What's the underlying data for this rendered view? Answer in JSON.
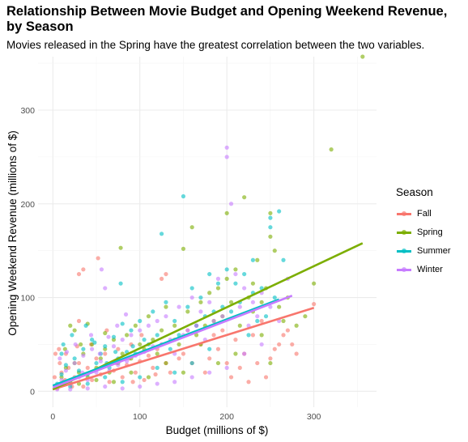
{
  "chart_data": {
    "type": "scatter",
    "title": "Relationship Between Movie Budget and Opening Weekend Revenue, by Season",
    "subtitle": "Movies released in the Spring have the greatest correlation between the two variables.",
    "xlabel": "Budget (millions of $)",
    "ylabel": "Opening Weekend Revenue (millions of $)",
    "xlim": [
      -17,
      372
    ],
    "ylim": [
      -17,
      357
    ],
    "x_ticks": [
      0,
      100,
      200,
      300
    ],
    "y_ticks": [
      0,
      100,
      200,
      300
    ],
    "grid": true,
    "legend": {
      "title": "Season",
      "position": "right"
    },
    "series": [
      {
        "name": "Fall",
        "color": "#F8766D",
        "trend": {
          "x": [
            0,
            300
          ],
          "y": [
            2,
            89
          ]
        },
        "points": [
          [
            5,
            3
          ],
          [
            10,
            20
          ],
          [
            15,
            40
          ],
          [
            20,
            8
          ],
          [
            25,
            15
          ],
          [
            30,
            30
          ],
          [
            35,
            5
          ],
          [
            40,
            25
          ],
          [
            45,
            12
          ],
          [
            50,
            35
          ],
          [
            55,
            18
          ],
          [
            60,
            40
          ],
          [
            65,
            10
          ],
          [
            70,
            22
          ],
          [
            75,
            45
          ],
          [
            80,
            15
          ],
          [
            85,
            28
          ],
          [
            90,
            50
          ],
          [
            95,
            20
          ],
          [
            100,
            32
          ],
          [
            105,
            12
          ],
          [
            110,
            38
          ],
          [
            115,
            25
          ],
          [
            120,
            45
          ],
          [
            125,
            120
          ],
          [
            130,
            30
          ],
          [
            140,
            55
          ],
          [
            150,
            40
          ],
          [
            160,
            30
          ],
          [
            165,
            70
          ],
          [
            170,
            50
          ],
          [
            180,
            35
          ],
          [
            185,
            60
          ],
          [
            190,
            45
          ],
          [
            200,
            30
          ],
          [
            210,
            55
          ],
          [
            220,
            40
          ],
          [
            230,
            60
          ],
          [
            240,
            75
          ],
          [
            250,
            35
          ],
          [
            260,
            50
          ],
          [
            270,
            65
          ],
          [
            280,
            40
          ],
          [
            300,
            93
          ],
          [
            35,
            130
          ],
          [
            30,
            125
          ],
          [
            52,
            142
          ],
          [
            130,
            125
          ],
          [
            30,
            75
          ],
          [
            3,
            40
          ],
          [
            7,
            45
          ],
          [
            12,
            10
          ],
          [
            18,
            25
          ],
          [
            22,
            5
          ],
          [
            28,
            48
          ],
          [
            2,
            15
          ],
          [
            8,
            30
          ],
          [
            14,
            12
          ],
          [
            44,
            50
          ],
          [
            62,
            65
          ],
          [
            73,
            30
          ],
          [
            88,
            35
          ],
          [
            92,
            10
          ],
          [
            102,
            60
          ],
          [
            118,
            18
          ],
          [
            125,
            50
          ],
          [
            135,
            20
          ],
          [
            145,
            35
          ],
          [
            155,
            65
          ],
          [
            175,
            20
          ],
          [
            195,
            65
          ],
          [
            205,
            15
          ],
          [
            215,
            25
          ],
          [
            225,
            10
          ],
          [
            235,
            30
          ],
          [
            245,
            15
          ],
          [
            255,
            45
          ],
          [
            265,
            60
          ],
          [
            275,
            50
          ]
        ]
      },
      {
        "name": "Spring",
        "color": "#7CAE00",
        "trend": {
          "x": [
            0,
            356
          ],
          "y": [
            2,
            158
          ]
        },
        "points": [
          [
            5,
            5
          ],
          [
            10,
            15
          ],
          [
            15,
            25
          ],
          [
            20,
            10
          ],
          [
            25,
            30
          ],
          [
            30,
            20
          ],
          [
            35,
            40
          ],
          [
            40,
            15
          ],
          [
            45,
            50
          ],
          [
            50,
            25
          ],
          [
            55,
            35
          ],
          [
            60,
            45
          ],
          [
            65,
            20
          ],
          [
            70,
            55
          ],
          [
            75,
            30
          ],
          [
            78,
            153
          ],
          [
            80,
            40
          ],
          [
            85,
            60
          ],
          [
            90,
            35
          ],
          [
            95,
            70
          ],
          [
            100,
            50
          ],
          [
            105,
            45
          ],
          [
            110,
            80
          ],
          [
            115,
            55
          ],
          [
            120,
            40
          ],
          [
            125,
            65
          ],
          [
            130,
            90
          ],
          [
            140,
            70
          ],
          [
            145,
            50
          ],
          [
            150,
            152
          ],
          [
            155,
            85
          ],
          [
            160,
            175
          ],
          [
            165,
            60
          ],
          [
            170,
            95
          ],
          [
            175,
            70
          ],
          [
            180,
            105
          ],
          [
            185,
            75
          ],
          [
            190,
            110
          ],
          [
            195,
            80
          ],
          [
            200,
            120
          ],
          [
            200,
            190
          ],
          [
            205,
            95
          ],
          [
            210,
            130
          ],
          [
            215,
            70
          ],
          [
            220,
            207
          ],
          [
            225,
            100
          ],
          [
            230,
            85
          ],
          [
            235,
            140
          ],
          [
            240,
            60
          ],
          [
            245,
            110
          ],
          [
            250,
            190
          ],
          [
            250,
            165
          ],
          [
            255,
            150
          ],
          [
            260,
            90
          ],
          [
            265,
            75
          ],
          [
            270,
            100
          ],
          [
            280,
            70
          ],
          [
            290,
            80
          ],
          [
            300,
            115
          ],
          [
            320,
            258
          ],
          [
            356,
            357
          ],
          [
            250,
            30
          ],
          [
            240,
            95
          ],
          [
            230,
            115
          ],
          [
            210,
            40
          ],
          [
            190,
            30
          ],
          [
            170,
            50
          ],
          [
            150,
            20
          ],
          [
            130,
            30
          ],
          [
            110,
            15
          ],
          [
            90,
            20
          ],
          [
            70,
            10
          ],
          [
            50,
            12
          ],
          [
            30,
            8
          ],
          [
            20,
            70
          ],
          [
            25,
            65
          ],
          [
            40,
            72
          ],
          [
            60,
            62
          ],
          [
            32,
            50
          ],
          [
            14,
            45
          ]
        ]
      },
      {
        "name": "Summer",
        "color": "#00BFC4",
        "trend": {
          "x": [
            0,
            260
          ],
          "y": [
            6,
            98
          ]
        },
        "points": [
          [
            5,
            8
          ],
          [
            10,
            18
          ],
          [
            15,
            28
          ],
          [
            20,
            12
          ],
          [
            25,
            35
          ],
          [
            30,
            22
          ],
          [
            35,
            45
          ],
          [
            40,
            18
          ],
          [
            45,
            55
          ],
          [
            50,
            30
          ],
          [
            55,
            40
          ],
          [
            60,
            48
          ],
          [
            65,
            25
          ],
          [
            70,
            58
          ],
          [
            75,
            35
          ],
          [
            78,
            115
          ],
          [
            80,
            72
          ],
          [
            85,
            42
          ],
          [
            90,
            65
          ],
          [
            95,
            40
          ],
          [
            100,
            75
          ],
          [
            105,
            55
          ],
          [
            110,
            50
          ],
          [
            115,
            85
          ],
          [
            120,
            60
          ],
          [
            125,
            168
          ],
          [
            130,
            95
          ],
          [
            135,
            45
          ],
          [
            140,
            75
          ],
          [
            145,
            60
          ],
          [
            150,
            208
          ],
          [
            155,
            90
          ],
          [
            160,
            110
          ],
          [
            165,
            70
          ],
          [
            170,
            100
          ],
          [
            175,
            80
          ],
          [
            180,
            125
          ],
          [
            185,
            85
          ],
          [
            190,
            115
          ],
          [
            195,
            90
          ],
          [
            200,
            130
          ],
          [
            205,
            85
          ],
          [
            210,
            115
          ],
          [
            215,
            95
          ],
          [
            220,
            125
          ],
          [
            225,
            60
          ],
          [
            230,
            105
          ],
          [
            235,
            75
          ],
          [
            240,
            110
          ],
          [
            245,
            80
          ],
          [
            250,
            185
          ],
          [
            250,
            175
          ],
          [
            255,
            100
          ],
          [
            260,
            192
          ],
          [
            265,
            140
          ],
          [
            230,
            140
          ],
          [
            180,
            45
          ],
          [
            160,
            30
          ],
          [
            140,
            20
          ],
          [
            120,
            25
          ],
          [
            100,
            15
          ],
          [
            80,
            10
          ],
          [
            60,
            15
          ],
          [
            40,
            8
          ],
          [
            20,
            5
          ],
          [
            10,
            40
          ],
          [
            12,
            50
          ],
          [
            22,
            60
          ],
          [
            38,
            70
          ],
          [
            48,
            52
          ],
          [
            62,
            30
          ],
          [
            72,
            42
          ],
          [
            92,
            48
          ]
        ]
      },
      {
        "name": "Winter",
        "color": "#C77CFF",
        "trend": {
          "x": [
            0,
            275
          ],
          "y": [
            4,
            102
          ]
        },
        "points": [
          [
            5,
            2
          ],
          [
            10,
            12
          ],
          [
            15,
            22
          ],
          [
            20,
            8
          ],
          [
            25,
            30
          ],
          [
            30,
            15
          ],
          [
            35,
            38
          ],
          [
            40,
            12
          ],
          [
            45,
            45
          ],
          [
            50,
            20
          ],
          [
            55,
            32
          ],
          [
            56,
            130
          ],
          [
            60,
            110
          ],
          [
            65,
            22
          ],
          [
            70,
            48
          ],
          [
            75,
            28
          ],
          [
            80,
            55
          ],
          [
            85,
            32
          ],
          [
            90,
            60
          ],
          [
            95,
            38
          ],
          [
            100,
            65
          ],
          [
            105,
            42
          ],
          [
            110,
            70
          ],
          [
            115,
            48
          ],
          [
            120,
            75
          ],
          [
            125,
            50
          ],
          [
            130,
            80
          ],
          [
            135,
            55
          ],
          [
            140,
            40
          ],
          [
            145,
            90
          ],
          [
            150,
            60
          ],
          [
            155,
            65
          ],
          [
            160,
            100
          ],
          [
            165,
            70
          ],
          [
            170,
            85
          ],
          [
            175,
            55
          ],
          [
            180,
            95
          ],
          [
            185,
            75
          ],
          [
            190,
            120
          ],
          [
            195,
            80
          ],
          [
            200,
            260
          ],
          [
            200,
            250
          ],
          [
            205,
            200
          ],
          [
            210,
            125
          ],
          [
            215,
            90
          ],
          [
            220,
            110
          ],
          [
            225,
            70
          ],
          [
            230,
            95
          ],
          [
            235,
            80
          ],
          [
            240,
            105
          ],
          [
            250,
            90
          ],
          [
            260,
            75
          ],
          [
            270,
            120
          ],
          [
            240,
            50
          ],
          [
            220,
            40
          ],
          [
            200,
            25
          ],
          [
            180,
            20
          ],
          [
            160,
            15
          ],
          [
            140,
            10
          ],
          [
            120,
            8
          ],
          [
            100,
            5
          ],
          [
            80,
            3
          ],
          [
            60,
            5
          ],
          [
            40,
            3
          ],
          [
            20,
            2
          ],
          [
            8,
            35
          ],
          [
            16,
            42
          ],
          [
            26,
            50
          ],
          [
            34,
            20
          ],
          [
            44,
            60
          ],
          [
            54,
            40
          ],
          [
            64,
            58
          ],
          [
            74,
            70
          ],
          [
            84,
            82
          ]
        ]
      }
    ]
  }
}
